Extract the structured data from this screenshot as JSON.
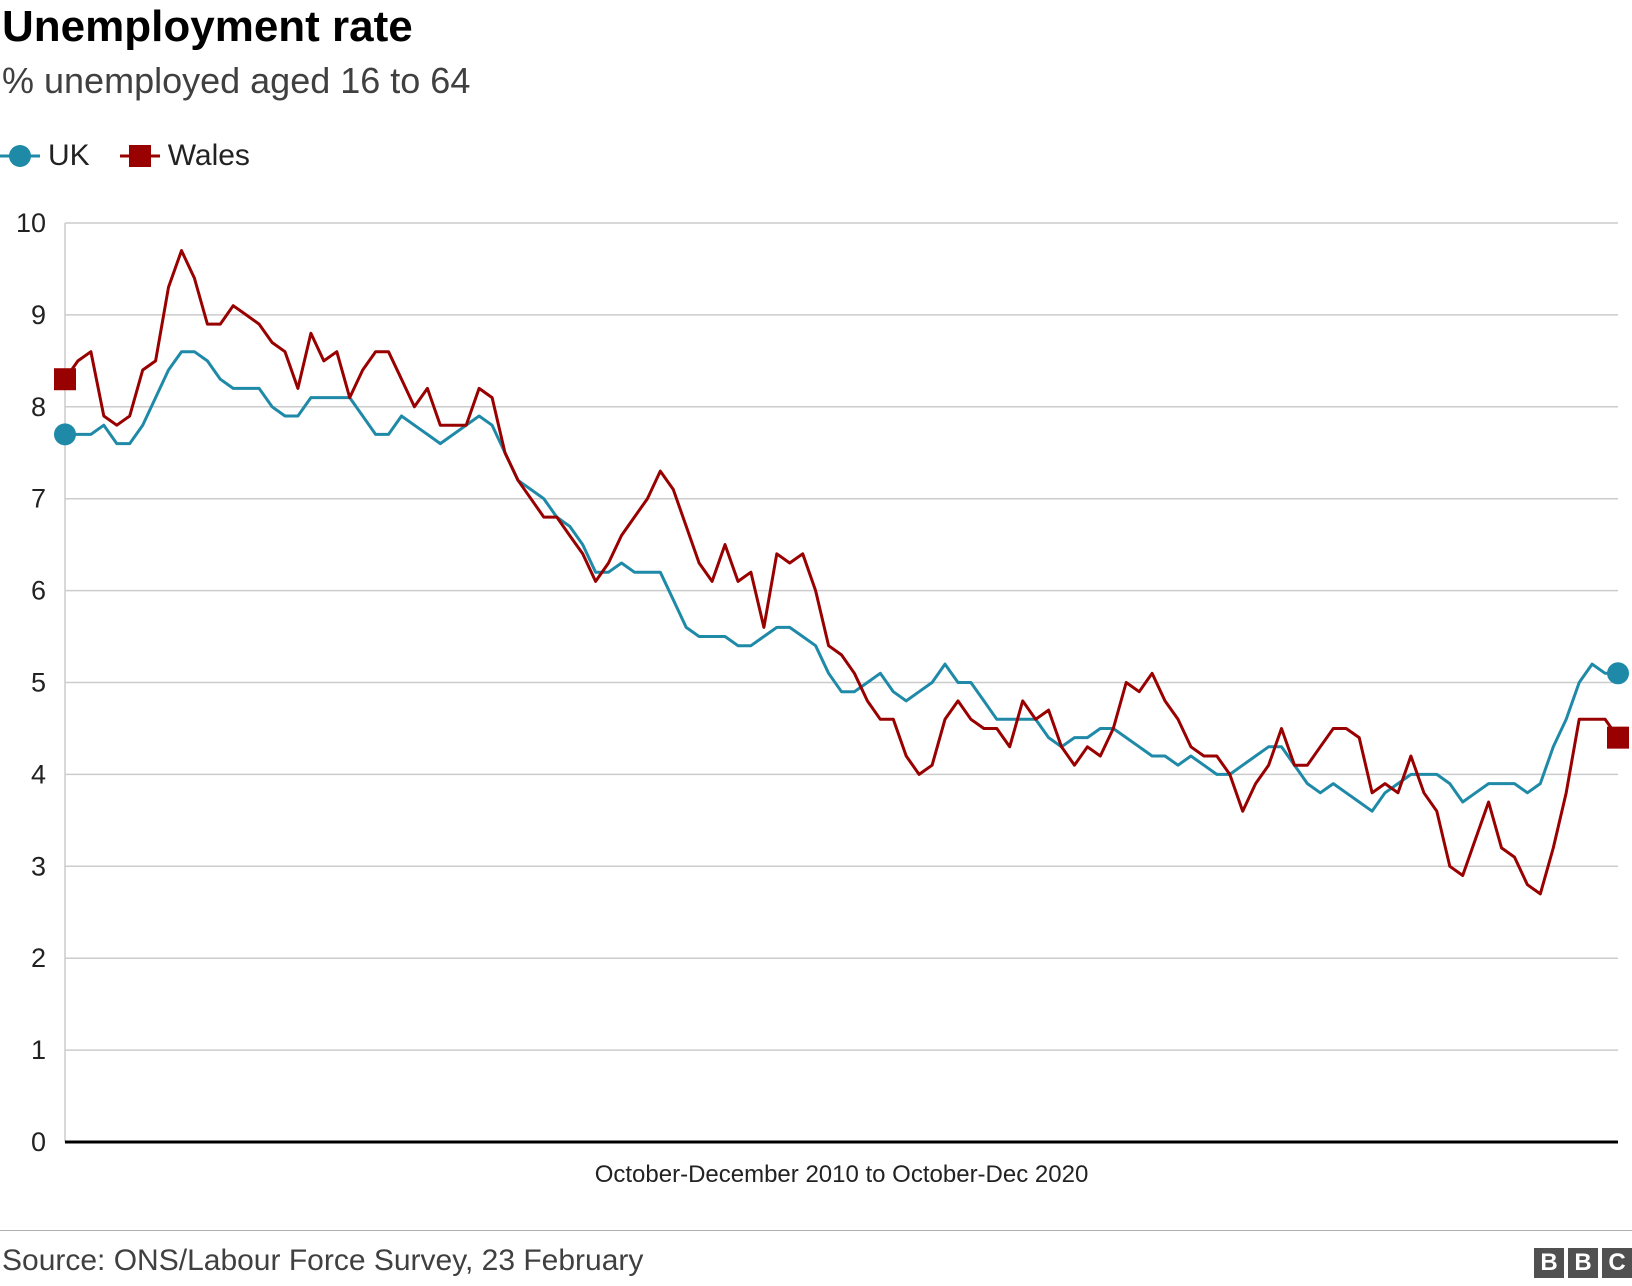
{
  "title": "Unemployment rate",
  "subtitle": "% unemployed aged 16 to 64",
  "source": "Source: ONS/Labour Force Survey, 23 February",
  "logo": [
    "B",
    "B",
    "C"
  ],
  "colors": {
    "uk": "#1f8aa8",
    "wales": "#990000",
    "grid": "#cccccc",
    "axis": "#000000"
  },
  "chart_data": {
    "type": "line",
    "xlabel": "October-December 2010 to October-Dec 2020",
    "ylabel": "",
    "ylim": [
      0,
      10
    ],
    "yticks": [
      0,
      1,
      2,
      3,
      4,
      5,
      6,
      7,
      8,
      9,
      10
    ],
    "grid": true,
    "legend": "top-left",
    "x_start": "Oct-Dec 2010",
    "x_end": "Oct-Dec 2020",
    "series": [
      {
        "name": "UK",
        "marker": "circle",
        "values": [
          7.7,
          7.7,
          7.7,
          7.8,
          7.6,
          7.6,
          7.8,
          8.1,
          8.4,
          8.6,
          8.6,
          8.5,
          8.3,
          8.2,
          8.2,
          8.2,
          8.0,
          7.9,
          7.9,
          8.1,
          8.1,
          8.1,
          8.1,
          7.9,
          7.7,
          7.7,
          7.9,
          7.8,
          7.7,
          7.6,
          7.7,
          7.8,
          7.9,
          7.8,
          7.5,
          7.2,
          7.1,
          7.0,
          6.8,
          6.7,
          6.5,
          6.2,
          6.2,
          6.3,
          6.2,
          6.2,
          6.2,
          5.9,
          5.6,
          5.5,
          5.5,
          5.5,
          5.4,
          5.4,
          5.5,
          5.6,
          5.6,
          5.5,
          5.4,
          5.1,
          4.9,
          4.9,
          5.0,
          5.1,
          4.9,
          4.8,
          4.9,
          5.0,
          5.2,
          5.0,
          5.0,
          4.8,
          4.6,
          4.6,
          4.6,
          4.6,
          4.4,
          4.3,
          4.4,
          4.4,
          4.5,
          4.5,
          4.4,
          4.3,
          4.2,
          4.2,
          4.1,
          4.2,
          4.1,
          4.0,
          4.0,
          4.1,
          4.2,
          4.3,
          4.3,
          4.1,
          3.9,
          3.8,
          3.9,
          3.8,
          3.7,
          3.6,
          3.8,
          3.9,
          4.0,
          4.0,
          4.0,
          3.9,
          3.7,
          3.8,
          3.9,
          3.9,
          3.9,
          3.8,
          3.9,
          4.3,
          4.6,
          5.0,
          5.2,
          5.1,
          5.1
        ]
      },
      {
        "name": "Wales",
        "marker": "square",
        "values": [
          8.3,
          8.5,
          8.6,
          7.9,
          7.8,
          7.9,
          8.4,
          8.5,
          9.3,
          9.7,
          9.4,
          8.9,
          8.9,
          9.1,
          9.0,
          8.9,
          8.7,
          8.6,
          8.2,
          8.8,
          8.5,
          8.6,
          8.1,
          8.4,
          8.6,
          8.6,
          8.3,
          8.0,
          8.2,
          7.8,
          7.8,
          7.8,
          8.2,
          8.1,
          7.5,
          7.2,
          7.0,
          6.8,
          6.8,
          6.6,
          6.4,
          6.1,
          6.3,
          6.6,
          6.8,
          7.0,
          7.3,
          7.1,
          6.7,
          6.3,
          6.1,
          6.5,
          6.1,
          6.2,
          5.6,
          6.4,
          6.3,
          6.4,
          6.0,
          5.4,
          5.3,
          5.1,
          4.8,
          4.6,
          4.6,
          4.2,
          4.0,
          4.1,
          4.6,
          4.8,
          4.6,
          4.5,
          4.5,
          4.3,
          4.8,
          4.6,
          4.7,
          4.3,
          4.1,
          4.3,
          4.2,
          4.5,
          5.0,
          4.9,
          5.1,
          4.8,
          4.6,
          4.3,
          4.2,
          4.2,
          4.0,
          3.6,
          3.9,
          4.1,
          4.5,
          4.1,
          4.1,
          4.3,
          4.5,
          4.5,
          4.4,
          3.8,
          3.9,
          3.8,
          4.2,
          3.8,
          3.6,
          3.0,
          2.9,
          3.3,
          3.7,
          3.2,
          3.1,
          2.8,
          2.7,
          3.2,
          3.8,
          4.6,
          4.6,
          4.6,
          4.4
        ]
      }
    ]
  }
}
